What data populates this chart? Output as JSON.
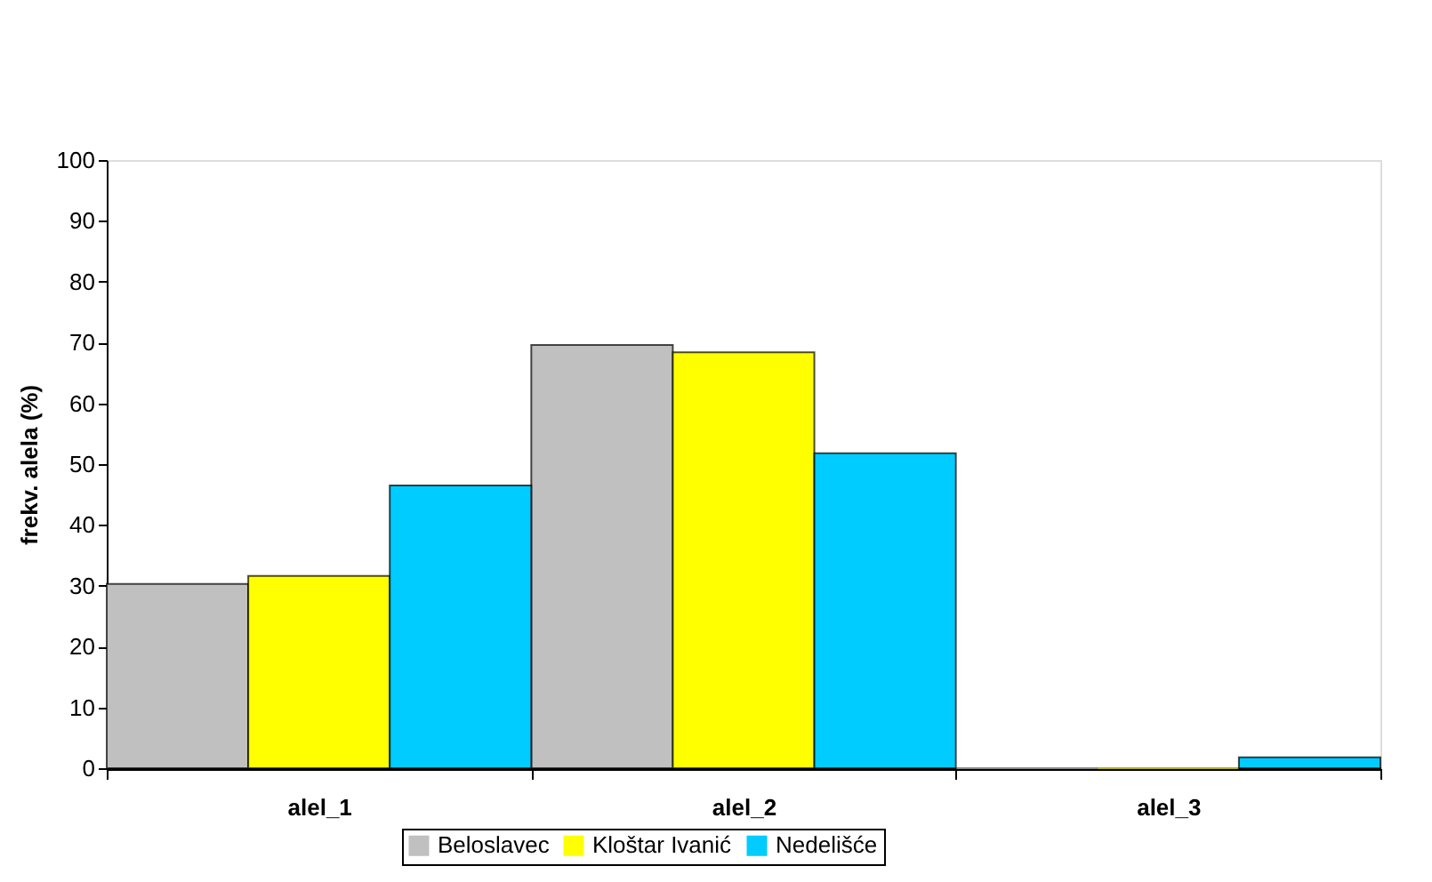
{
  "chart_data": {
    "type": "bar",
    "ylabel": "frekv. alela (%)",
    "categories": [
      "alel_1",
      "alel_2",
      "alel_3"
    ],
    "series": [
      {
        "name": "Beloslavec",
        "color": "#c0c0c0",
        "values": [
          30.3,
          69.6,
          0
        ]
      },
      {
        "name": "Kloštar Ivanić",
        "color": "#ffff00",
        "values": [
          31.6,
          68.4,
          0
        ]
      },
      {
        "name": "Nedelišće",
        "color": "#00ccff",
        "values": [
          46.5,
          51.8,
          1.8
        ]
      }
    ],
    "ylim": [
      0,
      100
    ],
    "yticks": [
      0,
      10,
      20,
      30,
      40,
      50,
      60,
      70,
      80,
      90,
      100
    ],
    "grid": false,
    "legend": "bottom"
  }
}
